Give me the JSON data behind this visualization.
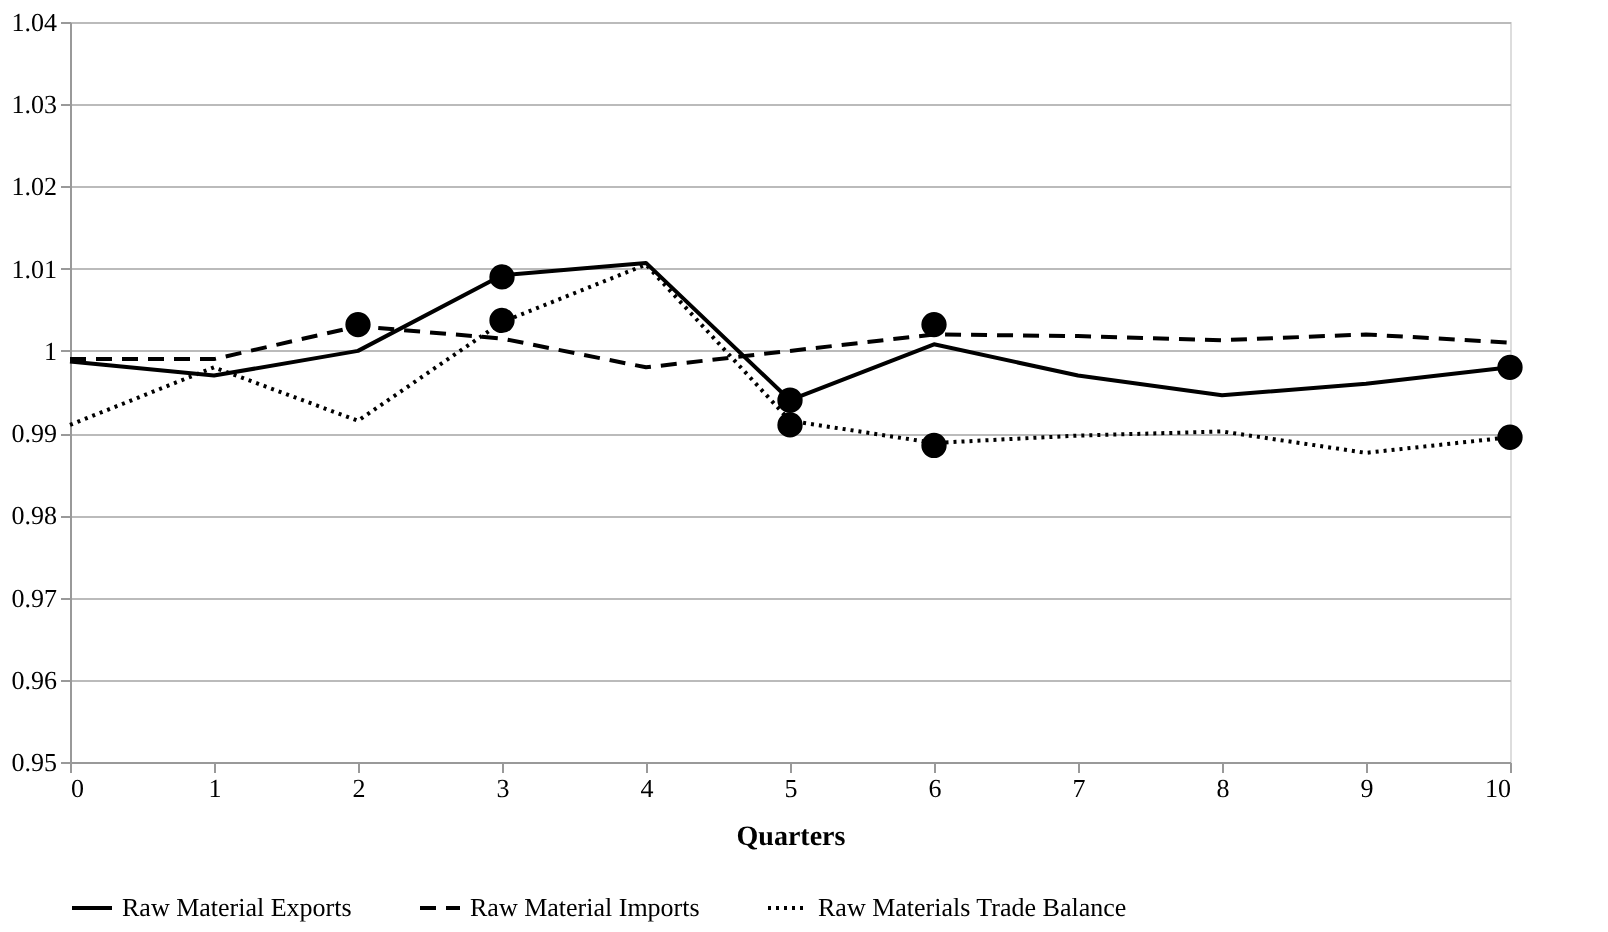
{
  "chart_data": {
    "type": "line",
    "xlabel": "Quarters",
    "xlim": [
      0,
      10
    ],
    "xticks": [
      0,
      1,
      2,
      3,
      4,
      5,
      6,
      7,
      8,
      9,
      10
    ],
    "ylim": [
      0.95,
      1.04
    ],
    "yticks": [
      0.95,
      0.96,
      0.97,
      0.98,
      0.99,
      1,
      1.01,
      1.02,
      1.03,
      1.04
    ],
    "grid": "y",
    "legend": "bottom",
    "marker": "none",
    "x": [
      0,
      1,
      2,
      3,
      4,
      5,
      6,
      7,
      8,
      9,
      10
    ],
    "series": [
      {
        "name": "Raw Material Exports",
        "color": "#000000",
        "line_style": "solid",
        "values": [
          0.9987,
          0.997,
          1.0,
          1.0092,
          1.0107,
          0.994,
          1.0008,
          0.997,
          0.9946,
          0.996,
          0.998
        ]
      },
      {
        "name": "Raw Material Imports",
        "color": "#000000",
        "line_style": "dashed",
        "values": [
          0.999,
          0.999,
          1.003,
          1.0015,
          0.998,
          1.0,
          1.002,
          1.0018,
          1.0013,
          1.002,
          1.001
        ]
      },
      {
        "name": "Raw Materials Trade Balance",
        "color": "#000000",
        "line_style": "dotted",
        "values": [
          0.991,
          0.998,
          0.9915,
          1.0035,
          1.0105,
          0.9915,
          0.9888,
          0.9897,
          0.9902,
          0.9876,
          0.9895
        ]
      },
      {
        "type": "scatter",
        "color": "#000000",
        "marker": "circle",
        "x": [
          2,
          3,
          3,
          5,
          5,
          6,
          6,
          10,
          10
        ],
        "values": [
          1.0032,
          1.009,
          1.0037,
          0.994,
          0.991,
          1.0032,
          0.9885,
          0.998,
          0.9895
        ]
      }
    ]
  }
}
